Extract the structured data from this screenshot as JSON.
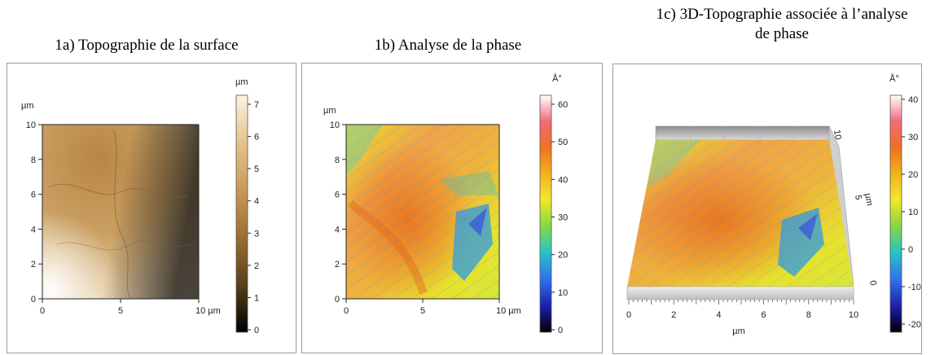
{
  "panels": [
    {
      "title": "1a) Topographie  de la surface",
      "y_unit": "µm",
      "x_ticks": [
        "0",
        "5",
        "10 µm"
      ],
      "y_ticks": [
        "10",
        "8",
        "6",
        "4",
        "2",
        "0"
      ],
      "colorbar_unit": "µm",
      "colorbar_ticks": [
        "7",
        "6",
        "5",
        "4",
        "3",
        "2",
        "1",
        "0"
      ],
      "colorbar_colors": [
        "#fbf3e2",
        "#e6c28f",
        "#c89a55",
        "#9a6f32",
        "#5a3f19",
        "#000000"
      ]
    },
    {
      "title": "1b) Analyse  de la phase",
      "y_unit": "µm",
      "x_ticks": [
        "0",
        "5",
        "10 µm"
      ],
      "y_ticks": [
        "10",
        "8",
        "6",
        "4",
        "2",
        "0"
      ],
      "colorbar_unit": "Å°",
      "colorbar_ticks": [
        "60",
        "50",
        "40",
        "30",
        "20",
        "10",
        "0"
      ],
      "colorbar_colors": [
        "#ffffff",
        "#f36a7a",
        "#f07020",
        "#f2b21c",
        "#f2e82a",
        "#88d840",
        "#28c6c2",
        "#2e6ff0",
        "#1a1aa0",
        "#000000"
      ]
    },
    {
      "title_line1": "1c) 3D-Topographie  associée à l’analyse",
      "title_line2": "de phase",
      "x_unit": "µm",
      "y_unit": "µm",
      "x_ticks": [
        "0",
        "2",
        "4",
        "6",
        "8",
        "10"
      ],
      "y_ticks": [
        "10",
        "5",
        "0"
      ],
      "colorbar_unit": "Å°",
      "colorbar_ticks": [
        "40",
        "30",
        "20",
        "10",
        "0",
        "-10",
        "-20"
      ],
      "colorbar_colors": [
        "#ffffff",
        "#f36a7a",
        "#f07020",
        "#f2b21c",
        "#f2e82a",
        "#88d840",
        "#28c6c2",
        "#2e6ff0",
        "#1a1aa0",
        "#000000"
      ]
    }
  ]
}
